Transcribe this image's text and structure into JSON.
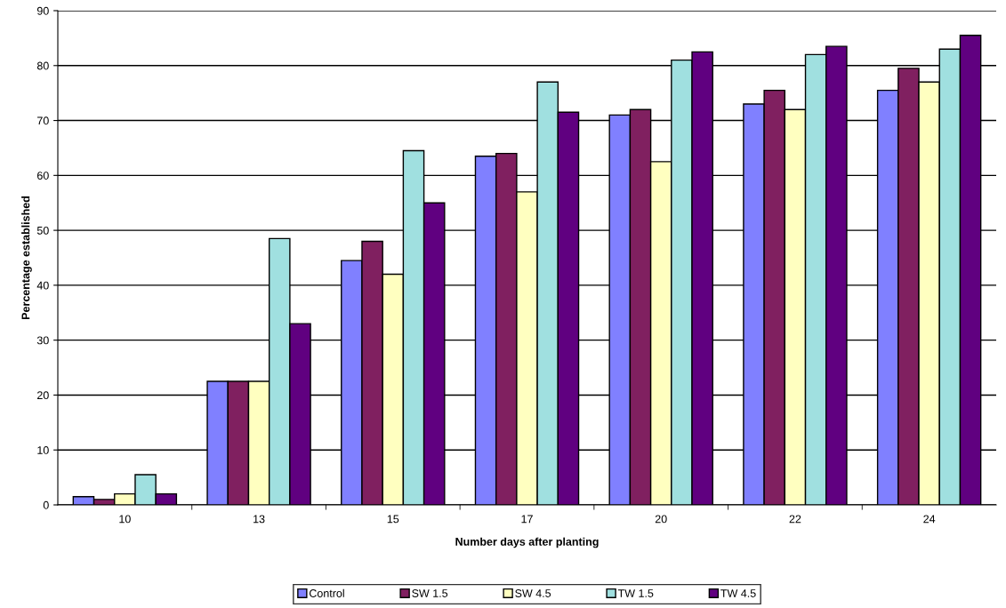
{
  "chart_data": {
    "type": "bar",
    "xlabel": "Number days after planting",
    "ylabel": "Percentage established",
    "categories": [
      "10",
      "13",
      "15",
      "17",
      "20",
      "22",
      "24"
    ],
    "series": [
      {
        "name": "Control",
        "color": "#8080ff",
        "values": [
          1.5,
          22.5,
          44.5,
          63.5,
          71,
          73,
          75.5
        ]
      },
      {
        "name": "SW 1.5",
        "color": "#802060",
        "values": [
          1,
          22.5,
          48,
          64,
          72,
          75.5,
          79.5
        ]
      },
      {
        "name": "SW 4.5",
        "color": "#ffffc0",
        "values": [
          2,
          22.5,
          42,
          57,
          62.5,
          72,
          77
        ]
      },
      {
        "name": "TW 1.5",
        "color": "#a0e0e0",
        "values": [
          5.5,
          48.5,
          64.5,
          77,
          81,
          82,
          83
        ]
      },
      {
        "name": "TW 4.5",
        "color": "#600080",
        "values": [
          2,
          33,
          55,
          71.5,
          82.5,
          83.5,
          85.5
        ]
      }
    ],
    "ylim": [
      0,
      90
    ],
    "yticks": [
      0,
      10,
      20,
      30,
      40,
      50,
      60,
      70,
      80,
      90
    ],
    "grid": "y",
    "legend": "bottom"
  }
}
